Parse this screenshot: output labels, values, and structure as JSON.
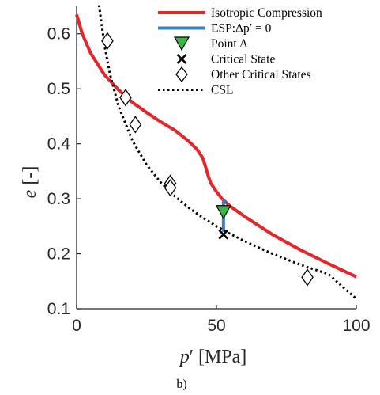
{
  "chart_data": {
    "type": "line",
    "xlabel_main": "p",
    "xlabel_prime": "′",
    "xlabel_unit": "[MPa]",
    "ylabel_main": "e",
    "ylabel_unit": "[-]",
    "xlim": [
      0,
      100
    ],
    "ylim": [
      0.1,
      0.65
    ],
    "xticks": [
      "0",
      "50",
      "100"
    ],
    "xtick_values": [
      0,
      50,
      100
    ],
    "yticks": [
      "0.1",
      "0.2",
      "0.3",
      "0.4",
      "0.5",
      "0.6"
    ],
    "ytick_values": [
      0.1,
      0.2,
      0.3,
      0.4,
      0.5,
      0.6
    ],
    "caption": "b)",
    "legend": [
      {
        "label": "Isotropic Compression",
        "marker": "line",
        "color": "#e3262a"
      },
      {
        "label": "ESP:Δp′ = 0",
        "marker": "line",
        "color": "#3f7fbf"
      },
      {
        "label": "Point A",
        "marker": "triangle-down",
        "color": "#3ab54a"
      },
      {
        "label": "Critical State",
        "marker": "x",
        "color": "#000000"
      },
      {
        "label": "Other Critical States",
        "marker": "diamond",
        "color": "#000000"
      },
      {
        "label": "CSL",
        "marker": "dotted-line",
        "color": "#000000"
      }
    ],
    "series": [
      {
        "name": "Isotropic Compression",
        "color": "#e3262a",
        "x": [
          0,
          2,
          5,
          10,
          15,
          20,
          25,
          30,
          35,
          40,
          43,
          45,
          46,
          47,
          48,
          50,
          52,
          55,
          60,
          70,
          80,
          90,
          100
        ],
        "y": [
          0.635,
          0.6,
          0.565,
          0.525,
          0.498,
          0.475,
          0.457,
          0.44,
          0.425,
          0.405,
          0.39,
          0.375,
          0.36,
          0.342,
          0.328,
          0.313,
          0.3,
          0.286,
          0.268,
          0.235,
          0.207,
          0.182,
          0.158
        ]
      },
      {
        "name": "ESP:Δp′ = 0",
        "color": "#3f7fbf",
        "x": [
          52.5,
          52.5
        ],
        "y": [
          0.3,
          0.24
        ]
      },
      {
        "name": "CSL",
        "color": "#000000",
        "x": [
          8,
          10,
          12,
          15,
          20,
          25,
          30,
          35,
          40,
          45,
          50,
          55,
          60,
          70,
          80,
          90,
          100
        ],
        "y": [
          0.652,
          0.578,
          0.525,
          0.468,
          0.405,
          0.362,
          0.33,
          0.305,
          0.284,
          0.266,
          0.25,
          0.236,
          0.223,
          0.2,
          0.18,
          0.163,
          0.118
        ]
      }
    ],
    "points": {
      "point_a": {
        "x": 52.5,
        "y": 0.276
      },
      "critical_state": {
        "x": 52.5,
        "y": 0.235
      },
      "other_critical_states": [
        {
          "x": 11,
          "y": 0.587
        },
        {
          "x": 17.5,
          "y": 0.484
        },
        {
          "x": 21,
          "y": 0.435
        },
        {
          "x": 33.5,
          "y": 0.328
        },
        {
          "x": 33.5,
          "y": 0.32
        },
        {
          "x": 82.5,
          "y": 0.157
        }
      ]
    }
  }
}
